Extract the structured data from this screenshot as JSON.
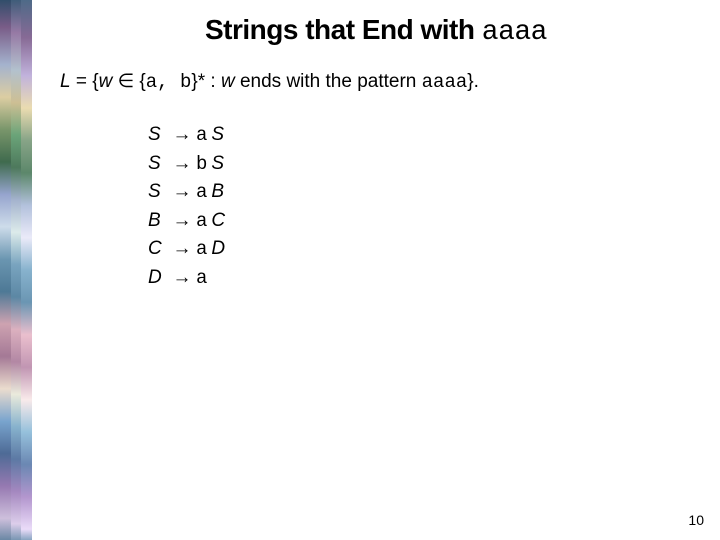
{
  "title": {
    "prefix": "Strings that End with ",
    "suffix": "aaaa"
  },
  "definition": {
    "L": "L",
    "eq": " = {",
    "w1": "w",
    "in": " ∈ {",
    "alpha": "a, b",
    "star": "}* : ",
    "w2": "w",
    "mid": " ends with the pattern ",
    "pat": "aaaa",
    "close": "}."
  },
  "rules": [
    {
      "lhs": "S",
      "rhs_sym": "a",
      "rhs_nt": "S"
    },
    {
      "lhs": "S",
      "rhs_sym": "b",
      "rhs_nt": "S"
    },
    {
      "lhs": "S",
      "rhs_sym": "a",
      "rhs_nt": "B"
    },
    {
      "lhs": "B",
      "rhs_sym": "a",
      "rhs_nt": "C"
    },
    {
      "lhs": "C",
      "rhs_sym": "a",
      "rhs_nt": "D"
    },
    {
      "lhs": "D",
      "rhs_sym": "a",
      "rhs_nt": ""
    }
  ],
  "arrow": "→",
  "page_number": "10",
  "colors": {
    "background": "#ffffff",
    "text": "#000000"
  },
  "fonts": {
    "title_size": 28,
    "body_size": 19,
    "page_num_size": 14
  }
}
